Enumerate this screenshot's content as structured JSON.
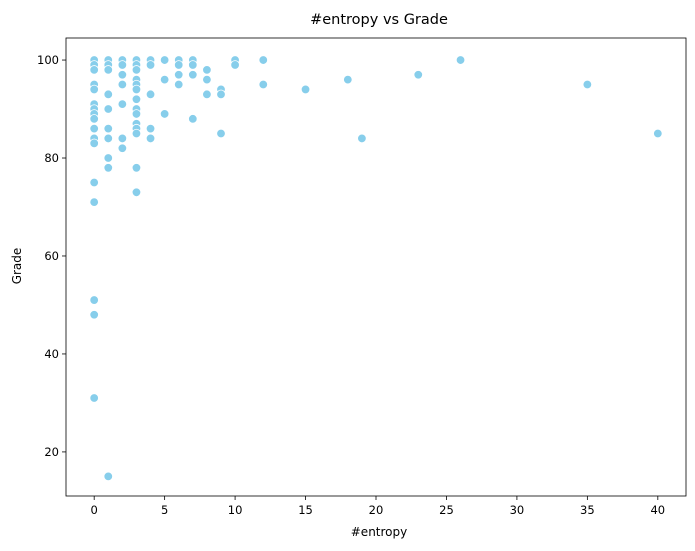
{
  "chart_data": {
    "type": "scatter",
    "title": "#entropy vs Grade",
    "xlabel": "#entropy",
    "ylabel": "Grade",
    "xlim": [
      -2,
      42
    ],
    "ylim": [
      11,
      104.5
    ],
    "xticks": [
      0,
      5,
      10,
      15,
      20,
      25,
      30,
      35,
      40
    ],
    "yticks": [
      20,
      40,
      60,
      80,
      100
    ],
    "grid": false,
    "legend": "none",
    "marker_color": "#87ceeb",
    "points": [
      {
        "x": 0,
        "y": 100
      },
      {
        "x": 0,
        "y": 99
      },
      {
        "x": 0,
        "y": 98
      },
      {
        "x": 0,
        "y": 95
      },
      {
        "x": 0,
        "y": 94
      },
      {
        "x": 0,
        "y": 91
      },
      {
        "x": 0,
        "y": 90
      },
      {
        "x": 0,
        "y": 89
      },
      {
        "x": 0,
        "y": 88
      },
      {
        "x": 0,
        "y": 86
      },
      {
        "x": 0,
        "y": 84
      },
      {
        "x": 0,
        "y": 83
      },
      {
        "x": 0,
        "y": 75
      },
      {
        "x": 0,
        "y": 71
      },
      {
        "x": 0,
        "y": 51
      },
      {
        "x": 0,
        "y": 48
      },
      {
        "x": 0,
        "y": 31
      },
      {
        "x": 1,
        "y": 100
      },
      {
        "x": 1,
        "y": 99
      },
      {
        "x": 1,
        "y": 98
      },
      {
        "x": 1,
        "y": 93
      },
      {
        "x": 1,
        "y": 90
      },
      {
        "x": 1,
        "y": 86
      },
      {
        "x": 1,
        "y": 84
      },
      {
        "x": 1,
        "y": 80
      },
      {
        "x": 1,
        "y": 78
      },
      {
        "x": 1,
        "y": 15
      },
      {
        "x": 2,
        "y": 100
      },
      {
        "x": 2,
        "y": 99
      },
      {
        "x": 2,
        "y": 97
      },
      {
        "x": 2,
        "y": 95
      },
      {
        "x": 2,
        "y": 91
      },
      {
        "x": 2,
        "y": 84
      },
      {
        "x": 2,
        "y": 82
      },
      {
        "x": 3,
        "y": 100
      },
      {
        "x": 3,
        "y": 99
      },
      {
        "x": 3,
        "y": 98
      },
      {
        "x": 3,
        "y": 96
      },
      {
        "x": 3,
        "y": 95
      },
      {
        "x": 3,
        "y": 94
      },
      {
        "x": 3,
        "y": 92
      },
      {
        "x": 3,
        "y": 90
      },
      {
        "x": 3,
        "y": 89
      },
      {
        "x": 3,
        "y": 87
      },
      {
        "x": 3,
        "y": 86
      },
      {
        "x": 3,
        "y": 85
      },
      {
        "x": 3,
        "y": 78
      },
      {
        "x": 3,
        "y": 73
      },
      {
        "x": 4,
        "y": 100
      },
      {
        "x": 4,
        "y": 99
      },
      {
        "x": 4,
        "y": 93
      },
      {
        "x": 4,
        "y": 86
      },
      {
        "x": 4,
        "y": 84
      },
      {
        "x": 5,
        "y": 100
      },
      {
        "x": 5,
        "y": 96
      },
      {
        "x": 5,
        "y": 89
      },
      {
        "x": 6,
        "y": 100
      },
      {
        "x": 6,
        "y": 99
      },
      {
        "x": 6,
        "y": 97
      },
      {
        "x": 6,
        "y": 95
      },
      {
        "x": 7,
        "y": 100
      },
      {
        "x": 7,
        "y": 99
      },
      {
        "x": 7,
        "y": 97
      },
      {
        "x": 7,
        "y": 88
      },
      {
        "x": 8,
        "y": 98
      },
      {
        "x": 8,
        "y": 96
      },
      {
        "x": 8,
        "y": 93
      },
      {
        "x": 9,
        "y": 94
      },
      {
        "x": 9,
        "y": 93
      },
      {
        "x": 9,
        "y": 85
      },
      {
        "x": 10,
        "y": 100
      },
      {
        "x": 10,
        "y": 99
      },
      {
        "x": 12,
        "y": 100
      },
      {
        "x": 12,
        "y": 95
      },
      {
        "x": 15,
        "y": 94
      },
      {
        "x": 18,
        "y": 96
      },
      {
        "x": 19,
        "y": 84
      },
      {
        "x": 23,
        "y": 97
      },
      {
        "x": 26,
        "y": 100
      },
      {
        "x": 35,
        "y": 95
      },
      {
        "x": 40,
        "y": 85
      }
    ]
  }
}
